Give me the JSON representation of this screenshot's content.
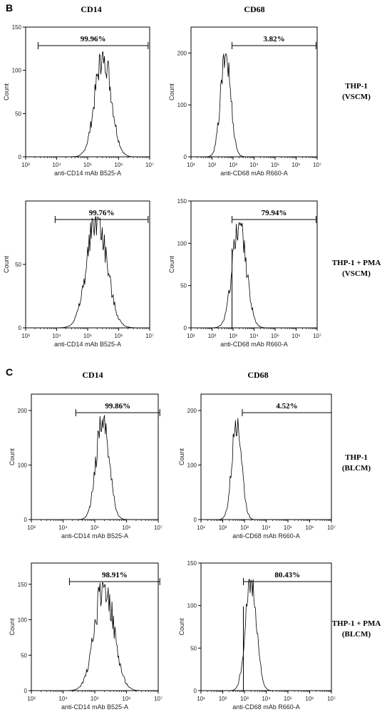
{
  "panels": [
    {
      "letter": "B",
      "col_titles": [
        "CD14",
        "CD68"
      ],
      "rows": [
        {
          "label_lines": [
            "THP-1",
            "(VSCM)"
          ]
        },
        {
          "label_lines": [
            "THP-1 + PMA",
            "(VSCM)"
          ]
        }
      ]
    },
    {
      "letter": "C",
      "col_titles": [
        "CD14",
        "CD68"
      ],
      "rows": [
        {
          "label_lines": [
            "THP-1",
            "(BLCM)"
          ]
        },
        {
          "label_lines": [
            "THP-1 + PMA",
            "(BLCM)"
          ]
        }
      ]
    }
  ],
  "chart_data": [
    {
      "type": "histogram",
      "xscale": "log",
      "xlim_exp": [
        3,
        7
      ],
      "ylim": [
        0,
        150
      ],
      "yticks": [
        0,
        50,
        100,
        150
      ],
      "ylabel": "Count",
      "xlabel": "anti-CD14 mAb B525-A",
      "peak_log": 5.5,
      "peak_count": 120,
      "sigma": 0.26,
      "gate": {
        "from_log": 3.4,
        "to_log": 6.95,
        "label": "99.96%"
      },
      "gate_line": null
    },
    {
      "type": "histogram",
      "xscale": "log",
      "xlim_exp": [
        1,
        7
      ],
      "ylim": [
        0,
        250
      ],
      "yticks": [
        0,
        100,
        200
      ],
      "ylabel": "Count",
      "xlabel": "anti-CD68 mAb R660-A",
      "peak_log": 2.65,
      "peak_count": 198,
      "sigma": 0.24,
      "gate": {
        "from_log": 2.95,
        "to_log": 6.95,
        "label": "3.82%"
      },
      "gate_line": null
    },
    {
      "type": "histogram",
      "xscale": "log",
      "xlim_exp": [
        3,
        7
      ],
      "ylim": [
        0,
        100
      ],
      "yticks": [
        0,
        50
      ],
      "ylabel": "Count",
      "xlabel": "anti-CD14 mAb B525-A",
      "peak_log": 5.3,
      "peak_count": 88,
      "sigma": 0.32,
      "gate": {
        "from_log": 3.95,
        "to_log": 6.95,
        "label": "99.76%"
      },
      "gate_line": null
    },
    {
      "type": "histogram",
      "xscale": "log",
      "xlim_exp": [
        1,
        7
      ],
      "ylim": [
        0,
        150
      ],
      "yticks": [
        0,
        50,
        100,
        150
      ],
      "ylabel": "Count",
      "xlabel": "anti-CD68 mAb R660-A",
      "peak_log": 3.3,
      "peak_count": 125,
      "sigma": 0.33,
      "gate": {
        "from_log": 2.95,
        "to_log": 6.95,
        "label": "79.94%"
      },
      "gate_line": 2.95
    },
    {
      "type": "histogram",
      "xscale": "log",
      "xlim_exp": [
        3,
        7
      ],
      "ylim": [
        0,
        230
      ],
      "yticks": [
        0,
        100,
        200
      ],
      "ylabel": "Count",
      "xlabel": "anti-CD14 mAb B525-A",
      "peak_log": 5.25,
      "peak_count": 190,
      "sigma": 0.2,
      "gate": {
        "from_log": 4.4,
        "to_log": 7.05,
        "label": "99.86%"
      },
      "gate_line": null
    },
    {
      "type": "histogram",
      "xscale": "log",
      "xlim_exp": [
        1,
        7
      ],
      "ylim": [
        0,
        230
      ],
      "yticks": [
        0,
        100,
        200
      ],
      "ylabel": "Count",
      "xlabel": "anti-CD68 mAb R660-A",
      "peak_log": 2.65,
      "peak_count": 188,
      "sigma": 0.22,
      "gate": {
        "from_log": 2.9,
        "to_log": 7.0,
        "label": "4.52%"
      },
      "gate_line": null
    },
    {
      "type": "histogram",
      "xscale": "log",
      "xlim_exp": [
        3,
        7
      ],
      "ylim": [
        0,
        180
      ],
      "yticks": [
        0,
        50,
        100,
        150
      ],
      "ylabel": "Count",
      "xlabel": "anti-CD14 mAb B525-A",
      "peak_log": 5.3,
      "peak_count": 150,
      "sigma": 0.3,
      "gate": {
        "from_log": 4.2,
        "to_log": 7.05,
        "label": "98.91%"
      },
      "gate_line": null
    },
    {
      "type": "histogram",
      "xscale": "log",
      "xlim_exp": [
        1,
        7
      ],
      "ylim": [
        0,
        150
      ],
      "yticks": [
        0,
        50,
        100,
        150
      ],
      "ylabel": "Count",
      "xlabel": "anti-CD68 mAb R660-A",
      "peak_log": 3.3,
      "peak_count": 132,
      "sigma": 0.25,
      "gate": {
        "from_log": 2.95,
        "to_log": 7.0,
        "label": "80.43%"
      },
      "gate_line": 2.95
    }
  ]
}
